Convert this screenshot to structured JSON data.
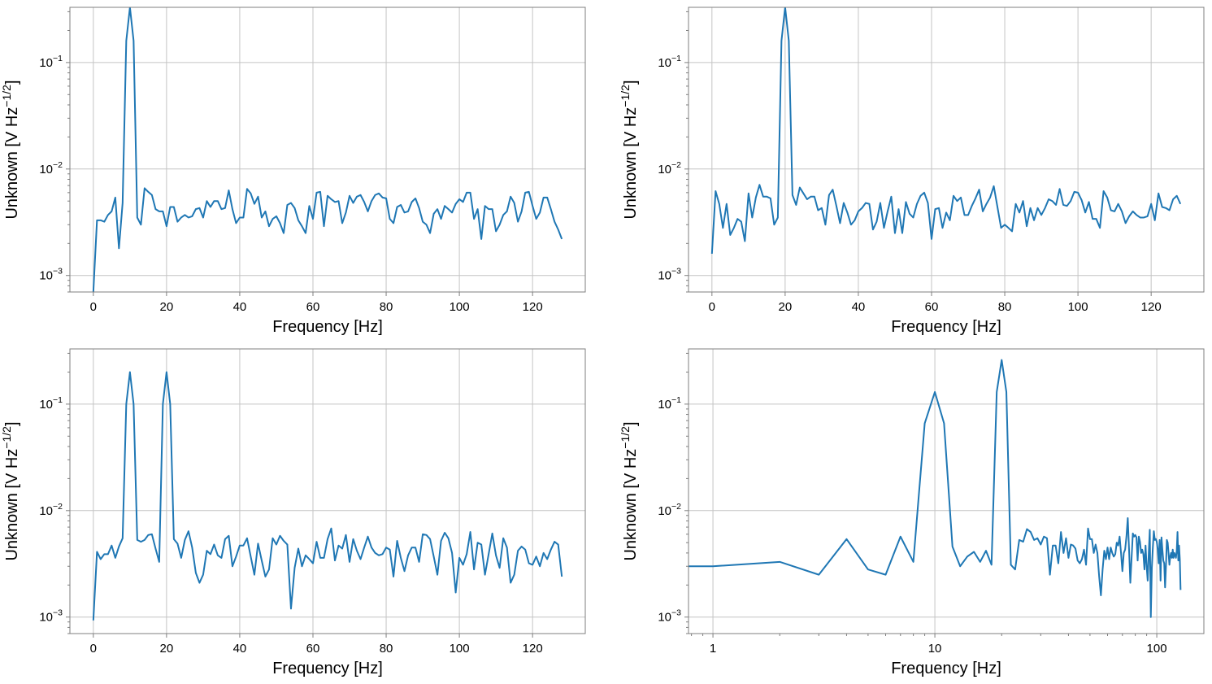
{
  "chart_data": [
    {
      "type": "line",
      "xscale": "linear",
      "yscale": "log",
      "xlim": [
        -6.4,
        134.4
      ],
      "ylim": [
        0.0007,
        0.33
      ],
      "grid": true,
      "color": "#1f77b4",
      "xlabel": "Frequency [Hz]",
      "ylabel": {
        "main": "Unknown [V Hz",
        "sup": "−1/2",
        "end": "]"
      },
      "xticks": [
        {
          "value": 0,
          "label": "0"
        },
        {
          "value": 20,
          "label": "20"
        },
        {
          "value": 40,
          "label": "40"
        },
        {
          "value": 60,
          "label": "60"
        },
        {
          "value": 80,
          "label": "80"
        },
        {
          "value": 100,
          "label": "100"
        },
        {
          "value": 120,
          "label": "120"
        }
      ],
      "yticks": [
        {
          "value": 0.1,
          "base": "10",
          "exp": "−1"
        },
        {
          "value": 0.01,
          "base": "10",
          "exp": "−2"
        },
        {
          "value": 0.001,
          "base": "10",
          "exp": "−3"
        }
      ],
      "x": [
        0,
        1,
        2,
        3,
        4,
        5,
        6,
        7,
        8,
        9,
        10,
        11,
        12,
        13,
        14,
        15,
        16,
        17,
        18,
        19,
        20,
        21,
        22,
        23,
        24,
        25,
        26,
        27,
        28,
        29,
        30,
        31,
        32,
        33,
        34,
        35,
        36,
        37,
        38,
        39,
        40,
        41,
        42,
        43,
        44,
        45,
        46,
        47,
        48,
        49,
        50,
        51,
        52,
        53,
        54,
        55,
        56,
        57,
        58,
        59,
        60,
        61,
        62,
        63,
        64,
        65,
        66,
        67,
        68,
        69,
        70,
        71,
        72,
        73,
        74,
        75,
        76,
        77,
        78,
        79,
        80,
        81,
        82,
        83,
        84,
        85,
        86,
        87,
        88,
        89,
        90,
        91,
        92,
        93,
        94,
        95,
        96,
        97,
        98,
        99,
        100,
        101,
        102,
        103,
        104,
        105,
        106,
        107,
        108,
        109,
        110,
        111,
        112,
        113,
        114,
        115,
        116,
        117,
        118,
        119,
        120,
        121,
        122,
        123,
        124,
        125,
        126,
        127,
        128
      ],
      "y": [
        0.0007,
        0.0033,
        0.0033,
        0.0032,
        0.0037,
        0.004,
        0.0054,
        0.0018,
        0.0048,
        0.16,
        0.33,
        0.16,
        0.0035,
        0.003,
        0.0066,
        0.0061,
        0.0057,
        0.0042,
        0.004,
        0.004,
        0.0029,
        0.0044,
        0.0044,
        0.0032,
        0.0035,
        0.0037,
        0.0035,
        0.0036,
        0.0042,
        0.0043,
        0.0035,
        0.005,
        0.0044,
        0.005,
        0.005,
        0.0042,
        0.0043,
        0.0063,
        0.0042,
        0.0031,
        0.0035,
        0.0035,
        0.0065,
        0.0059,
        0.0047,
        0.0055,
        0.0035,
        0.004,
        0.0029,
        0.0034,
        0.0036,
        0.0031,
        0.0025,
        0.0046,
        0.0048,
        0.0043,
        0.0033,
        0.0029,
        0.0025,
        0.0045,
        0.0034,
        0.006,
        0.0061,
        0.0029,
        0.0056,
        0.0052,
        0.0049,
        0.005,
        0.0031,
        0.0039,
        0.0056,
        0.0048,
        0.0055,
        0.0057,
        0.0049,
        0.004,
        0.005,
        0.0057,
        0.0059,
        0.0054,
        0.0053,
        0.0034,
        0.0031,
        0.0044,
        0.0046,
        0.0039,
        0.004,
        0.0049,
        0.0053,
        0.0043,
        0.0032,
        0.003,
        0.0025,
        0.0038,
        0.0042,
        0.0034,
        0.0045,
        0.0042,
        0.0039,
        0.0047,
        0.0052,
        0.0049,
        0.006,
        0.006,
        0.0034,
        0.0042,
        0.0022,
        0.0045,
        0.0042,
        0.0042,
        0.0026,
        0.003,
        0.0037,
        0.004,
        0.0055,
        0.0048,
        0.0032,
        0.004,
        0.006,
        0.0061,
        0.0045,
        0.0034,
        0.0039,
        0.0054,
        0.0054,
        0.0042,
        0.0032,
        0.0027,
        0.0022
      ]
    },
    {
      "type": "line",
      "xscale": "linear",
      "yscale": "log",
      "xlim": [
        -6.4,
        134.4
      ],
      "ylim": [
        0.0007,
        0.33
      ],
      "grid": true,
      "color": "#1f77b4",
      "xlabel": "Frequency [Hz]",
      "ylabel": {
        "main": "Unknown [V Hz",
        "sup": "−1/2",
        "end": "]"
      },
      "xticks": [
        {
          "value": 0,
          "label": "0"
        },
        {
          "value": 20,
          "label": "20"
        },
        {
          "value": 40,
          "label": "40"
        },
        {
          "value": 60,
          "label": "60"
        },
        {
          "value": 80,
          "label": "80"
        },
        {
          "value": 100,
          "label": "100"
        },
        {
          "value": 120,
          "label": "120"
        }
      ],
      "yticks": [
        {
          "value": 0.1,
          "base": "10",
          "exp": "−1"
        },
        {
          "value": 0.01,
          "base": "10",
          "exp": "−2"
        },
        {
          "value": 0.001,
          "base": "10",
          "exp": "−3"
        }
      ],
      "x": [
        0,
        1,
        2,
        3,
        4,
        5,
        6,
        7,
        8,
        9,
        10,
        11,
        12,
        13,
        14,
        15,
        16,
        17,
        18,
        19,
        20,
        21,
        22,
        23,
        24,
        25,
        26,
        27,
        28,
        29,
        30,
        31,
        32,
        33,
        34,
        35,
        36,
        37,
        38,
        39,
        40,
        41,
        42,
        43,
        44,
        45,
        46,
        47,
        48,
        49,
        50,
        51,
        52,
        53,
        54,
        55,
        56,
        57,
        58,
        59,
        60,
        61,
        62,
        63,
        64,
        65,
        66,
        67,
        68,
        69,
        70,
        71,
        72,
        73,
        74,
        75,
        76,
        77,
        78,
        79,
        80,
        81,
        82,
        83,
        84,
        85,
        86,
        87,
        88,
        89,
        90,
        91,
        92,
        93,
        94,
        95,
        96,
        97,
        98,
        99,
        100,
        101,
        102,
        103,
        104,
        105,
        106,
        107,
        108,
        109,
        110,
        111,
        112,
        113,
        114,
        115,
        116,
        117,
        118,
        119,
        120,
        121,
        122,
        123,
        124,
        125,
        126,
        127,
        128
      ],
      "y": [
        0.0016,
        0.0062,
        0.0047,
        0.0028,
        0.0047,
        0.0024,
        0.0028,
        0.0034,
        0.0032,
        0.0021,
        0.0059,
        0.0035,
        0.0054,
        0.0071,
        0.0055,
        0.0055,
        0.0053,
        0.003,
        0.0035,
        0.16,
        0.33,
        0.16,
        0.0057,
        0.0046,
        0.0067,
        0.0059,
        0.0052,
        0.0055,
        0.0055,
        0.0041,
        0.0043,
        0.003,
        0.0057,
        0.0064,
        0.0045,
        0.0031,
        0.0048,
        0.0039,
        0.003,
        0.0033,
        0.004,
        0.0043,
        0.0048,
        0.0047,
        0.0027,
        0.0032,
        0.0048,
        0.0028,
        0.004,
        0.0055,
        0.0025,
        0.0042,
        0.0025,
        0.0049,
        0.0038,
        0.0035,
        0.0047,
        0.0056,
        0.006,
        0.0048,
        0.0022,
        0.0042,
        0.0043,
        0.0028,
        0.0039,
        0.0033,
        0.0056,
        0.005,
        0.0054,
        0.0037,
        0.0037,
        0.0045,
        0.0053,
        0.0064,
        0.004,
        0.0047,
        0.0054,
        0.0069,
        0.0044,
        0.0028,
        0.003,
        0.0028,
        0.0026,
        0.0047,
        0.0039,
        0.005,
        0.0029,
        0.0043,
        0.0033,
        0.0043,
        0.0037,
        0.0043,
        0.0052,
        0.005,
        0.0046,
        0.0065,
        0.0046,
        0.0045,
        0.005,
        0.0061,
        0.006,
        0.0051,
        0.0039,
        0.0049,
        0.0034,
        0.0034,
        0.0028,
        0.0062,
        0.0054,
        0.0041,
        0.004,
        0.0047,
        0.004,
        0.0031,
        0.0036,
        0.004,
        0.0037,
        0.0035,
        0.0035,
        0.0036,
        0.0047,
        0.0033,
        0.0059,
        0.0044,
        0.0043,
        0.0041,
        0.0052,
        0.0056,
        0.0047
      ]
    },
    {
      "type": "line",
      "xscale": "linear",
      "yscale": "log",
      "xlim": [
        -6.4,
        134.4
      ],
      "ylim": [
        0.0007,
        0.33
      ],
      "grid": true,
      "color": "#1f77b4",
      "xlabel": "Frequency [Hz]",
      "ylabel": {
        "main": "Unknown [V Hz",
        "sup": "−1/2",
        "end": "]"
      },
      "xticks": [
        {
          "value": 0,
          "label": "0"
        },
        {
          "value": 20,
          "label": "20"
        },
        {
          "value": 40,
          "label": "40"
        },
        {
          "value": 60,
          "label": "60"
        },
        {
          "value": 80,
          "label": "80"
        },
        {
          "value": 100,
          "label": "100"
        },
        {
          "value": 120,
          "label": "120"
        }
      ],
      "yticks": [
        {
          "value": 0.1,
          "base": "10",
          "exp": "−1"
        },
        {
          "value": 0.01,
          "base": "10",
          "exp": "−2"
        },
        {
          "value": 0.001,
          "base": "10",
          "exp": "−3"
        }
      ],
      "x": [
        0,
        1,
        2,
        3,
        4,
        5,
        6,
        7,
        8,
        9,
        10,
        11,
        12,
        13,
        14,
        15,
        16,
        17,
        18,
        19,
        20,
        21,
        22,
        23,
        24,
        25,
        26,
        27,
        28,
        29,
        30,
        31,
        32,
        33,
        34,
        35,
        36,
        37,
        38,
        39,
        40,
        41,
        42,
        43,
        44,
        45,
        46,
        47,
        48,
        49,
        50,
        51,
        52,
        53,
        54,
        55,
        56,
        57,
        58,
        59,
        60,
        61,
        62,
        63,
        64,
        65,
        66,
        67,
        68,
        69,
        70,
        71,
        72,
        73,
        74,
        75,
        76,
        77,
        78,
        79,
        80,
        81,
        82,
        83,
        84,
        85,
        86,
        87,
        88,
        89,
        90,
        91,
        92,
        93,
        94,
        95,
        96,
        97,
        98,
        99,
        100,
        101,
        102,
        103,
        104,
        105,
        106,
        107,
        108,
        109,
        110,
        111,
        112,
        113,
        114,
        115,
        116,
        117,
        118,
        119,
        120,
        121,
        122,
        123,
        124,
        125,
        126,
        127,
        128
      ],
      "y": [
        0.00093,
        0.0041,
        0.0035,
        0.0039,
        0.0039,
        0.0047,
        0.0036,
        0.0046,
        0.0055,
        0.1,
        0.2,
        0.1,
        0.0053,
        0.0051,
        0.0053,
        0.0059,
        0.006,
        0.0044,
        0.0033,
        0.1,
        0.2,
        0.1,
        0.0054,
        0.0049,
        0.0036,
        0.0053,
        0.0064,
        0.0045,
        0.0026,
        0.0021,
        0.0025,
        0.0042,
        0.0039,
        0.0048,
        0.0038,
        0.0036,
        0.0054,
        0.0058,
        0.003,
        0.0037,
        0.0047,
        0.0047,
        0.0055,
        0.0037,
        0.0025,
        0.0049,
        0.0034,
        0.0024,
        0.0028,
        0.0055,
        0.0048,
        0.0058,
        0.0052,
        0.0048,
        0.0012,
        0.0029,
        0.0044,
        0.003,
        0.0038,
        0.0035,
        0.0032,
        0.0051,
        0.0036,
        0.0036,
        0.0054,
        0.0068,
        0.0034,
        0.0047,
        0.0044,
        0.0059,
        0.0033,
        0.0054,
        0.0042,
        0.0035,
        0.0045,
        0.0057,
        0.0045,
        0.004,
        0.0038,
        0.0039,
        0.0045,
        0.0043,
        0.0024,
        0.0052,
        0.0036,
        0.0027,
        0.0038,
        0.0045,
        0.0045,
        0.0033,
        0.006,
        0.0059,
        0.0054,
        0.0037,
        0.0025,
        0.0052,
        0.0062,
        0.0055,
        0.004,
        0.0017,
        0.0036,
        0.0031,
        0.0039,
        0.0063,
        0.0028,
        0.005,
        0.0048,
        0.0025,
        0.0039,
        0.0061,
        0.0038,
        0.0029,
        0.0055,
        0.0045,
        0.0021,
        0.0025,
        0.0042,
        0.0046,
        0.0043,
        0.0032,
        0.0031,
        0.0037,
        0.003,
        0.004,
        0.0035,
        0.0043,
        0.0051,
        0.0048,
        0.0024
      ]
    },
    {
      "type": "line",
      "xscale": "log",
      "yscale": "log",
      "xlim": [
        0.776,
        163
      ],
      "ylim": [
        0.0007,
        0.33
      ],
      "grid": true,
      "color": "#1f77b4",
      "xlabel": "Frequency [Hz]",
      "ylabel": {
        "main": "Unknown [V Hz",
        "sup": "−1/2",
        "end": "]"
      },
      "xticks": [
        {
          "value": 1,
          "label": "1"
        },
        {
          "value": 10,
          "label": "10"
        },
        {
          "value": 100,
          "label": "100"
        }
      ],
      "yticks": [
        {
          "value": 0.1,
          "base": "10",
          "exp": "−1"
        },
        {
          "value": 0.01,
          "base": "10",
          "exp": "−2"
        },
        {
          "value": 0.001,
          "base": "10",
          "exp": "−3"
        }
      ],
      "x": [
        0,
        1,
        2,
        3,
        4,
        5,
        6,
        7,
        8,
        9,
        10,
        11,
        12,
        13,
        14,
        15,
        16,
        17,
        18,
        19,
        20,
        21,
        22,
        23,
        24,
        25,
        26,
        27,
        28,
        29,
        30,
        31,
        32,
        33,
        34,
        35,
        36,
        37,
        38,
        39,
        40,
        41,
        42,
        43,
        44,
        45,
        46,
        47,
        48,
        49,
        50,
        51,
        52,
        53,
        54,
        55,
        56,
        57,
        58,
        59,
        60,
        61,
        62,
        63,
        64,
        65,
        66,
        67,
        68,
        69,
        70,
        71,
        72,
        73,
        74,
        75,
        76,
        77,
        78,
        79,
        80,
        81,
        82,
        83,
        84,
        85,
        86,
        87,
        88,
        89,
        90,
        91,
        92,
        93,
        94,
        95,
        96,
        97,
        98,
        99,
        100,
        101,
        102,
        103,
        104,
        105,
        106,
        107,
        108,
        109,
        110,
        111,
        112,
        113,
        114,
        115,
        116,
        117,
        118,
        119,
        120,
        121,
        122,
        123,
        124,
        125,
        126,
        127,
        128
      ],
      "y": [
        0.003,
        0.003,
        0.0033,
        0.0025,
        0.0054,
        0.0028,
        0.0025,
        0.0057,
        0.0033,
        0.066,
        0.13,
        0.066,
        0.0046,
        0.003,
        0.0037,
        0.0041,
        0.0033,
        0.0042,
        0.0031,
        0.13,
        0.26,
        0.13,
        0.0031,
        0.0028,
        0.0053,
        0.0051,
        0.0067,
        0.0063,
        0.0053,
        0.0055,
        0.0048,
        0.0057,
        0.0055,
        0.0025,
        0.0047,
        0.0047,
        0.0032,
        0.0063,
        0.004,
        0.0055,
        0.0036,
        0.0048,
        0.0047,
        0.0044,
        0.0034,
        0.0032,
        0.0035,
        0.0043,
        0.0031,
        0.0068,
        0.0054,
        0.0054,
        0.004,
        0.0048,
        0.004,
        0.0024,
        0.0016,
        0.0028,
        0.0042,
        0.0035,
        0.0045,
        0.0035,
        0.0045,
        0.004,
        0.0037,
        0.0039,
        0.005,
        0.0047,
        0.0057,
        0.004,
        0.0027,
        0.004,
        0.0043,
        0.0057,
        0.0085,
        0.0043,
        0.0021,
        0.0036,
        0.0061,
        0.0057,
        0.0059,
        0.0056,
        0.0034,
        0.0057,
        0.0051,
        0.004,
        0.0043,
        0.0039,
        0.0028,
        0.0047,
        0.003,
        0.0022,
        0.004,
        0.0066,
        0.001,
        0.0029,
        0.0045,
        0.0064,
        0.0053,
        0.0054,
        0.0051,
        0.0043,
        0.0032,
        0.0053,
        0.0022,
        0.0056,
        0.0043,
        0.0034,
        0.0032,
        0.0019,
        0.003,
        0.0053,
        0.005,
        0.004,
        0.0031,
        0.0037,
        0.004,
        0.0036,
        0.0043,
        0.0036,
        0.004,
        0.0038,
        0.0036,
        0.0042,
        0.0063,
        0.0034,
        0.0047,
        0.0035,
        0.0018
      ]
    }
  ]
}
